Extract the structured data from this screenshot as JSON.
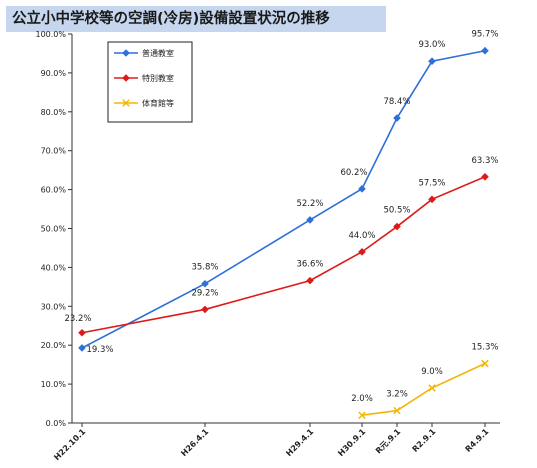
{
  "chart_data": {
    "type": "line",
    "title": "公立小中学校等の空調(冷房)設備設置状況の推移",
    "categories": [
      "H22.10.1",
      "H26.4.1",
      "H29.4.1",
      "H30.9.1",
      "R元.9.1",
      "R2.9.1",
      "R4.9.1"
    ],
    "y_tick_labels": [
      "0.0%",
      "10.0%",
      "20.0%",
      "30.0%",
      "40.0%",
      "50.0%",
      "60.0%",
      "70.0%",
      "80.0%",
      "90.0%",
      "100.0%"
    ],
    "ylim": [
      0,
      100
    ],
    "grid": false,
    "legend_position": "top-left",
    "series": [
      {
        "name": "普通教室",
        "color": "#2e6fd8",
        "marker": "diamond",
        "values": [
          19.3,
          35.8,
          52.2,
          60.2,
          78.4,
          93.0,
          95.7
        ],
        "labels": [
          "19.3%",
          "35.8%",
          "52.2%",
          "60.2%",
          "78.4%",
          "93.0%",
          "95.7%"
        ]
      },
      {
        "name": "特別教室",
        "color": "#dd1a1a",
        "marker": "diamond",
        "values": [
          23.2,
          29.2,
          36.6,
          44.0,
          50.5,
          57.5,
          63.3
        ],
        "labels": [
          "23.2%",
          "29.2%",
          "36.6%",
          "44.0%",
          "50.5%",
          "57.5%",
          "63.3%"
        ]
      },
      {
        "name": "体育館等",
        "color": "#f2b705",
        "marker": "x",
        "values": [
          null,
          null,
          null,
          2.0,
          3.2,
          9.0,
          15.3
        ],
        "labels": [
          null,
          null,
          null,
          "2.0%",
          "3.2%",
          "9.0%",
          "15.3%"
        ]
      }
    ]
  }
}
